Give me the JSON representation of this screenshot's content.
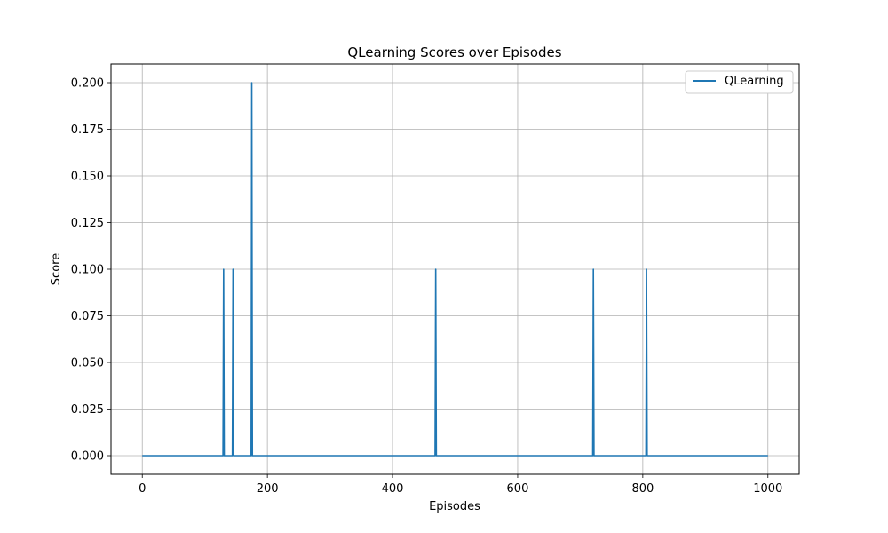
{
  "chart_data": {
    "type": "line",
    "title": "QLearning Scores over Episodes",
    "xlabel": "Episodes",
    "ylabel": "Score",
    "xlim": [
      -50,
      1050
    ],
    "ylim": [
      -0.01,
      0.21
    ],
    "xticks": [
      0,
      200,
      400,
      600,
      800,
      1000
    ],
    "yticks": [
      0.0,
      0.025,
      0.05,
      0.075,
      0.1,
      0.125,
      0.15,
      0.175,
      0.2
    ],
    "xtick_labels": [
      "0",
      "200",
      "400",
      "600",
      "800",
      "1000"
    ],
    "ytick_labels": [
      "0.000",
      "0.025",
      "0.050",
      "0.075",
      "0.100",
      "0.125",
      "0.150",
      "0.175",
      "0.200"
    ],
    "grid": true,
    "legend_position": "top-right",
    "series": [
      {
        "name": "QLearning",
        "color": "#1f77b4",
        "x": [
          0,
          129,
          130,
          131,
          144,
          145,
          146,
          174,
          175,
          176,
          468,
          469,
          470,
          720,
          721,
          722,
          805,
          806,
          807,
          1000
        ],
        "y": [
          0,
          0,
          0.1,
          0,
          0,
          0.1,
          0,
          0,
          0.2,
          0,
          0,
          0.1,
          0,
          0,
          0.1,
          0,
          0,
          0.1,
          0,
          0
        ]
      }
    ]
  }
}
